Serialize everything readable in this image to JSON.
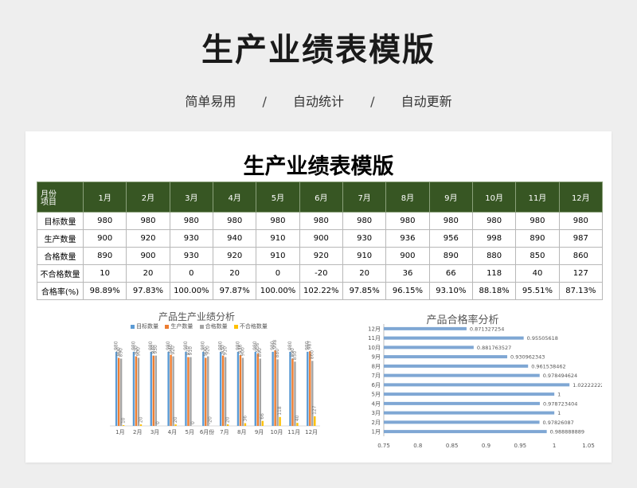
{
  "hero": {
    "title": "生产业绩表模版",
    "tags": [
      "简单易用",
      "/",
      "自动统计",
      "/",
      "自动更新"
    ]
  },
  "sheet": {
    "title": "生产业绩表模版",
    "corner_top": "月份",
    "corner_bottom": "项目",
    "months": [
      "1月",
      "2月",
      "3月",
      "4月",
      "5月",
      "6月",
      "7月",
      "8月",
      "9月",
      "10月",
      "11月",
      "12月"
    ],
    "rows": [
      {
        "label": "目标数量",
        "values": [
          "980",
          "980",
          "980",
          "980",
          "980",
          "980",
          "980",
          "980",
          "980",
          "980",
          "980",
          "980"
        ]
      },
      {
        "label": "生产数量",
        "values": [
          "900",
          "920",
          "930",
          "940",
          "910",
          "900",
          "930",
          "936",
          "956",
          "998",
          "890",
          "987"
        ]
      },
      {
        "label": "合格数量",
        "values": [
          "890",
          "900",
          "930",
          "920",
          "910",
          "920",
          "910",
          "900",
          "890",
          "880",
          "850",
          "860"
        ]
      },
      {
        "label": "不合格数量",
        "values": [
          "10",
          "20",
          "0",
          "20",
          "0",
          "-20",
          "20",
          "36",
          "66",
          "118",
          "40",
          "127"
        ]
      },
      {
        "label": "合格率(%)",
        "values": [
          "98.89%",
          "97.83%",
          "100.00%",
          "97.87%",
          "100.00%",
          "102.22%",
          "97.85%",
          "96.15%",
          "93.10%",
          "88.18%",
          "95.51%",
          "87.13%"
        ]
      }
    ]
  },
  "colors": {
    "header_green": "#375623",
    "target": "#5b9bd5",
    "production": "#ed7d31",
    "qualified": "#a5a5a5",
    "unqualified": "#ffc000",
    "rate_bar": "#7fa7d4"
  },
  "chart_data": [
    {
      "type": "bar",
      "title": "产品生产业绩分析",
      "categories": [
        "1月",
        "2月",
        "3月",
        "4月",
        "5月",
        "6月份",
        "7月",
        "8月",
        "9月",
        "10月",
        "11月",
        "12月"
      ],
      "series": [
        {
          "name": "目标数量",
          "values": [
            980,
            980,
            980,
            980,
            980,
            980,
            980,
            980,
            980,
            980,
            980,
            980
          ]
        },
        {
          "name": "生产数量",
          "values": [
            900,
            920,
            930,
            940,
            910,
            900,
            930,
            936,
            956,
            998,
            890,
            987
          ]
        },
        {
          "name": "合格数量",
          "values": [
            890,
            900,
            930,
            920,
            910,
            920,
            910,
            900,
            890,
            880,
            850,
            860
          ]
        },
        {
          "name": "不合格数量",
          "values": [
            10,
            20,
            0,
            20,
            0,
            -20,
            20,
            36,
            66,
            118,
            40,
            127
          ]
        }
      ],
      "legend": "top-center",
      "data_labels": true
    },
    {
      "type": "bar",
      "orientation": "horizontal",
      "title": "产品合格率分析",
      "categories": [
        "1月",
        "2月",
        "3月",
        "4月",
        "5月",
        "6月",
        "7月",
        "8月",
        "9月",
        "10月",
        "11月",
        "12月"
      ],
      "values": [
        0.988888889,
        0.97826087,
        1,
        0.978723404,
        1,
        1.022222222,
        0.978494624,
        0.961538462,
        0.930962343,
        0.881763527,
        0.95505618,
        0.871327254
      ],
      "value_labels": [
        "0.988888889",
        "0.97826087",
        "1",
        "0.978723404",
        "1",
        "1.022222222",
        "0.978494624",
        "0.961538462",
        "0.930962343",
        "0.881763527",
        "0.95505618",
        "0.871327254"
      ],
      "xlim": [
        0.75,
        1.05
      ],
      "x_ticks": [
        "0.75",
        "0.8",
        "0.85",
        "0.9",
        "0.95",
        "1",
        "1.05"
      ]
    }
  ]
}
